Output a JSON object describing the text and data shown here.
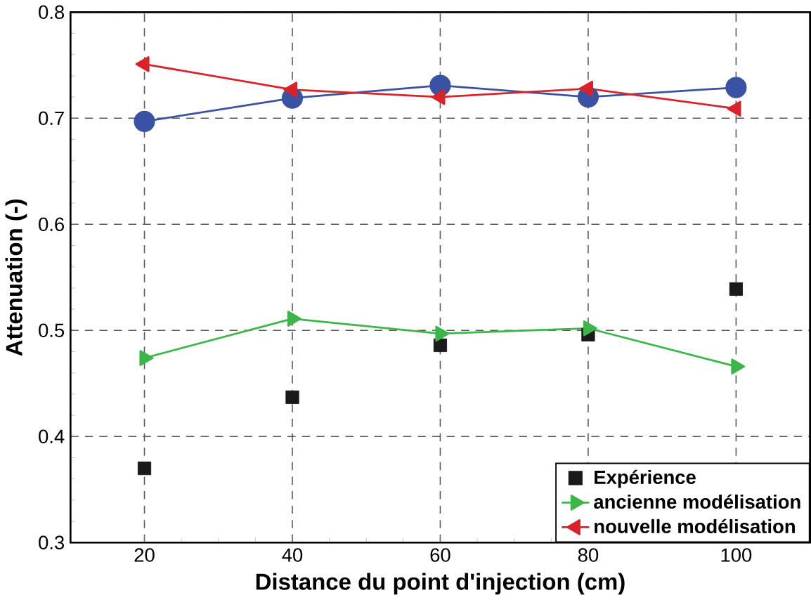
{
  "chart_data": {
    "type": "line",
    "xlabel": "Distance du point d'injection (cm)",
    "ylabel": "Attenuation (-)",
    "x": [
      20,
      40,
      60,
      80,
      100
    ],
    "series": [
      {
        "name": "Expérience",
        "type": "scatter",
        "marker": "square",
        "color": "#1a1a1a",
        "values": [
          0.37,
          0.437,
          0.486,
          0.496,
          0.539
        ]
      },
      {
        "marker": "circle",
        "color": "#3a52a4",
        "values": [
          0.697,
          0.719,
          0.731,
          0.72,
          0.729
        ]
      },
      {
        "name": "ancienne modélisation",
        "marker": "triangle",
        "color": "#3cb648",
        "values": [
          0.474,
          0.511,
          0.497,
          0.502,
          0.466
        ]
      },
      {
        "name": "nouvelle modélisation",
        "marker": "triangle",
        "color": "#d9232a",
        "values": [
          0.751,
          0.727,
          0.72,
          0.728,
          0.709
        ]
      }
    ],
    "xlim": [
      10,
      110
    ],
    "xticks": [
      20,
      40,
      60,
      80,
      100
    ],
    "ylim": [
      0.3,
      0.8
    ],
    "yticks": [
      0.3,
      0.4,
      0.5,
      0.6,
      0.7,
      0.8
    ],
    "grid": true,
    "legend": "bottom right"
  }
}
